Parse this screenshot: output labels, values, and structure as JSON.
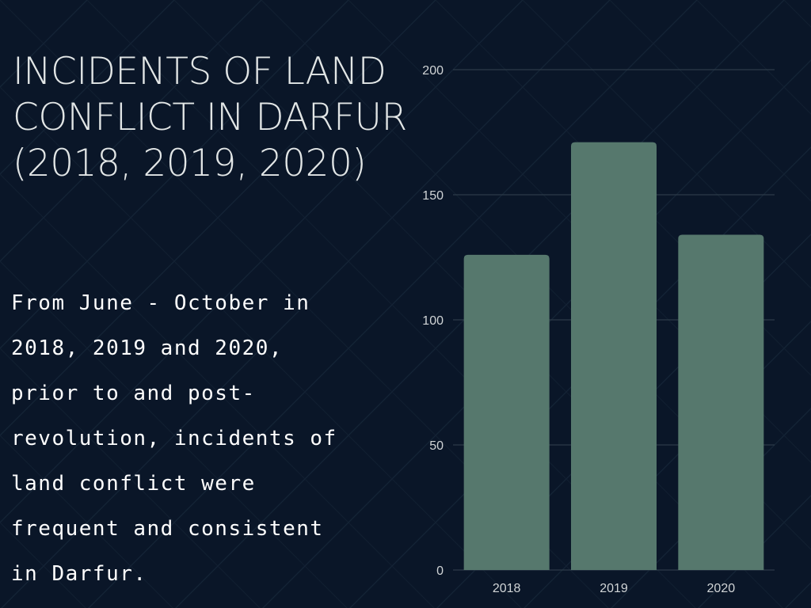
{
  "title": "INCIDENTS OF LAND CONFLICT IN DARFUR (2018, 2019, 2020)",
  "body": "From June - October in 2018, 2019 and 2020, prior to and post-revolution, incidents of land conflict were frequent and consistent in Darfur.",
  "colors": {
    "background": "#0a1628",
    "bar": "#56786d",
    "gridline": "#2c3b48",
    "title_text": "#e2e6e6",
    "body_text": "#ffffff"
  },
  "chart_data": {
    "type": "bar",
    "categories": [
      "2018",
      "2019",
      "2020"
    ],
    "values": [
      126,
      171,
      134
    ],
    "ylim": [
      0,
      200
    ],
    "yticks": [
      0,
      50,
      100,
      150,
      200
    ],
    "grid": true
  }
}
